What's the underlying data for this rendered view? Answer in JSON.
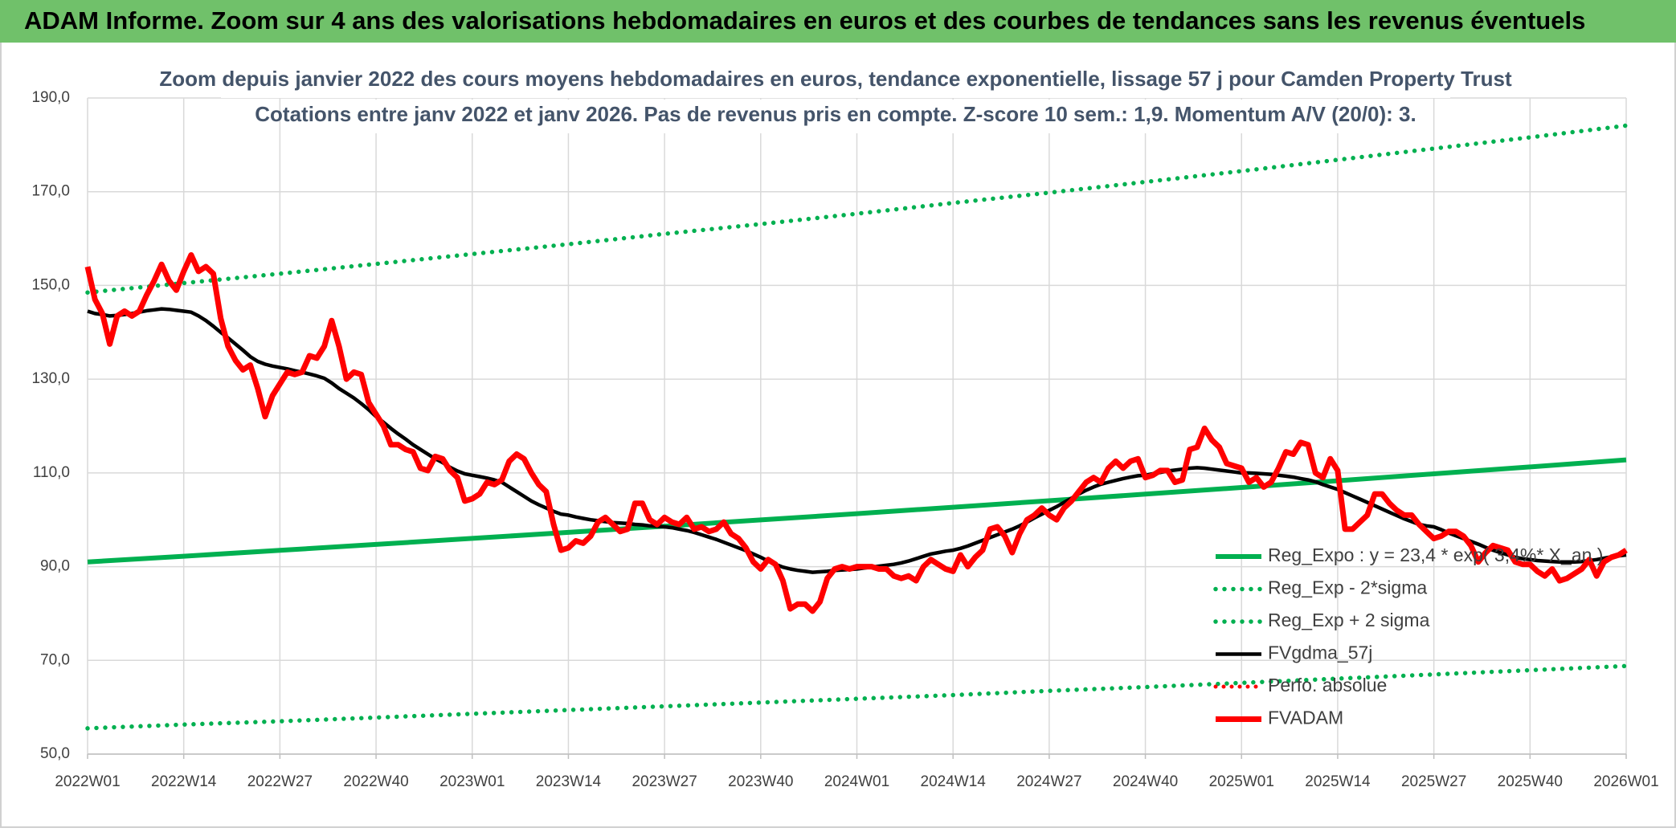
{
  "header": {
    "title": "ADAM Informe. Zoom sur 4 ans des valorisations hebdomadaires en euros et des courbes de tendances sans les revenus éventuels"
  },
  "chart_data": {
    "type": "line",
    "title": "Zoom depuis janvier 2022 des cours moyens hebdomadaires en euros, tendance exponentielle, lissage 57 j pour Camden Property Trust",
    "subtitle": "Cotations entre janv 2022 et janv 2026. Pas de revenus pris en compte. Z-score 10 sem.: 1,9. Momentum A/V (20/0): 3.",
    "categories": [
      "2022W01",
      null,
      null,
      null,
      null,
      null,
      null,
      null,
      null,
      null,
      null,
      null,
      null,
      "2022W14",
      null,
      null,
      null,
      null,
      null,
      null,
      null,
      null,
      null,
      null,
      null,
      null,
      "2022W27",
      null,
      null,
      null,
      null,
      null,
      null,
      null,
      null,
      null,
      null,
      null,
      null,
      "2022W40",
      null,
      null,
      null,
      null,
      null,
      null,
      null,
      null,
      null,
      null,
      null,
      null,
      "2023W01",
      null,
      null,
      null,
      null,
      null,
      null,
      null,
      null,
      null,
      null,
      null,
      null,
      "2023W14",
      null,
      null,
      null,
      null,
      null,
      null,
      null,
      null,
      null,
      null,
      null,
      null,
      "2023W27",
      null,
      null,
      null,
      null,
      null,
      null,
      null,
      null,
      null,
      null,
      null,
      null,
      "2023W40",
      null,
      null,
      null,
      null,
      null,
      null,
      null,
      null,
      null,
      null,
      null,
      null,
      "2024W01",
      null,
      null,
      null,
      null,
      null,
      null,
      null,
      null,
      null,
      null,
      null,
      null,
      "2024W14",
      null,
      null,
      null,
      null,
      null,
      null,
      null,
      null,
      null,
      null,
      null,
      null,
      "2024W27",
      null,
      null,
      null,
      null,
      null,
      null,
      null,
      null,
      null,
      null,
      null,
      null,
      "2024W40",
      null,
      null,
      null,
      null,
      null,
      null,
      null,
      null,
      null,
      null,
      null,
      null,
      "2025W01",
      null,
      null,
      null,
      null,
      null,
      null,
      null,
      null,
      null,
      null,
      null,
      null,
      "2025W14",
      null,
      null,
      null,
      null,
      null,
      null,
      null,
      null,
      null,
      null,
      null,
      null,
      "2025W27",
      null,
      null,
      null,
      null,
      null,
      null,
      null,
      null,
      null,
      null,
      null,
      null,
      "2025W40",
      null,
      null,
      null,
      null,
      null,
      null,
      null,
      null,
      null,
      null,
      null,
      null,
      "2026W01"
    ],
    "ylim": [
      50,
      190
    ],
    "yticks": [
      {
        "value": 50,
        "label": "50,0"
      },
      {
        "value": 70,
        "label": "70,0"
      },
      {
        "value": 90,
        "label": "90,0"
      },
      {
        "value": 110,
        "label": "110,0"
      },
      {
        "value": 130,
        "label": "130,0"
      },
      {
        "value": 150,
        "label": "150,0"
      },
      {
        "value": 170,
        "label": "170,0"
      },
      {
        "value": 190,
        "label": "190,0"
      }
    ],
    "grid": true,
    "legend": "lower right",
    "series": [
      {
        "name": "Reg_Expo : y = 23,4 * exp( 3,4%* X_an )",
        "color": "#00b050",
        "line_style": "solid",
        "x": [
          "2022W01",
          "2022W14",
          "2022W27",
          "2022W40",
          "2023W01",
          "2023W14",
          "2023W27",
          "2023W40",
          "2024W01",
          "2024W14",
          "2024W27",
          "2024W40",
          "2025W01",
          "2025W14",
          "2025W27",
          "2025W40",
          "2026W01"
        ],
        "values": [
          91,
          92.23,
          93.47,
          94.74,
          96.02,
          97.31,
          98.63,
          99.96,
          101.31,
          102.68,
          104.06,
          105.47,
          106.89,
          108.33,
          109.8,
          111.28,
          112.78
        ]
      },
      {
        "name": "Reg_Exp - 2*sigma",
        "color": "#00b050",
        "line_style": "dotted",
        "x": [
          "2022W01",
          "2022W14",
          "2022W27",
          "2022W40",
          "2023W01",
          "2023W14",
          "2023W27",
          "2023W40",
          "2024W01",
          "2024W14",
          "2024W27",
          "2024W40",
          "2025W01",
          "2025W14",
          "2025W27",
          "2025W40",
          "2026W01"
        ],
        "values": [
          55.5,
          56.3,
          57.0,
          57.8,
          58.6,
          59.4,
          60.2,
          61.0,
          61.8,
          62.6,
          63.5,
          64.3,
          65.2,
          66.1,
          67.0,
          67.9,
          68.8
        ]
      },
      {
        "name": "Reg_Exp + 2 sigma",
        "color": "#00b050",
        "line_style": "dotted",
        "x": [
          "2022W01",
          "2022W14",
          "2022W27",
          "2022W40",
          "2023W01",
          "2023W14",
          "2023W27",
          "2023W40",
          "2024W01",
          "2024W14",
          "2024W27",
          "2024W40",
          "2025W01",
          "2025W14",
          "2025W27",
          "2025W40",
          "2026W01"
        ],
        "values": [
          148.5,
          150.5,
          152.5,
          154.6,
          156.7,
          158.8,
          161.0,
          163.1,
          165.3,
          167.6,
          169.8,
          172.1,
          174.4,
          176.8,
          179.2,
          181.6,
          184.1
        ]
      },
      {
        "name": "FVgdma_57j",
        "color": "#000000",
        "line_style": "solid",
        "values": [
          144.5,
          144,
          143.8,
          143.5,
          143.6,
          143.8,
          144,
          144.3,
          144.6,
          144.8,
          145,
          144.9,
          144.7,
          144.5,
          144.3,
          143.5,
          142.5,
          141.3,
          140,
          138.8,
          137.5,
          136.2,
          134.8,
          133.8,
          133.2,
          132.8,
          132.5,
          132.2,
          131.8,
          131.5,
          131.1,
          130.7,
          130.2,
          129.2,
          128,
          127,
          126,
          124.8,
          123.5,
          122,
          120.8,
          119.5,
          118.3,
          117.2,
          116,
          115,
          114,
          113,
          112.2,
          111.2,
          110.4,
          109.8,
          109.5,
          109.2,
          108.9,
          108.5,
          108,
          107,
          106,
          105,
          104,
          103.2,
          102.5,
          101.8,
          101.2,
          101,
          100.6,
          100.3,
          100,
          99.8,
          99.6,
          99.4,
          99.3,
          99.2,
          99,
          98.9,
          98.7,
          98.6,
          98.5,
          98.3,
          98,
          97.7,
          97.3,
          96.8,
          96.3,
          95.8,
          95.2,
          94.6,
          94,
          93.4,
          92.7,
          92,
          91.2,
          90.5,
          89.9,
          89.5,
          89.2,
          89,
          88.8,
          88.9,
          89,
          89.2,
          89.3,
          89.4,
          89.5,
          89.7,
          89.9,
          90.1,
          90.3,
          90.5,
          90.8,
          91.2,
          91.7,
          92.2,
          92.7,
          93,
          93.3,
          93.5,
          93.9,
          94.4,
          95,
          95.6,
          96.2,
          96.8,
          97.4,
          98,
          98.7,
          99.5,
          100.4,
          101.2,
          102,
          102.8,
          103.7,
          104.6,
          105.5,
          106.3,
          107,
          107.6,
          108,
          108.4,
          108.8,
          109.1,
          109.4,
          109.5,
          109.8,
          110.1,
          110.4,
          110.6,
          110.8,
          111,
          111.1,
          111,
          110.8,
          110.6,
          110.4,
          110.2,
          110,
          110,
          109.9,
          109.8,
          109.7,
          109.5,
          109.3,
          109.1,
          108.8,
          108.5,
          108.1,
          107.5,
          107,
          106.5,
          105.8,
          105.1,
          104.4,
          103.7,
          103,
          102.3,
          101.6,
          100.9,
          100.2,
          99.6,
          99,
          98.7,
          98.5,
          97.9,
          97.2,
          96.6,
          96,
          95.4,
          94.8,
          94.1,
          93.5,
          93,
          92.5,
          92,
          91.7,
          91.5,
          91.3,
          91.2,
          91.1,
          91,
          91,
          91,
          91.1,
          91.3,
          91.5,
          91.8,
          92.1,
          92.3,
          92.5
        ]
      },
      {
        "name": "Perfo. absolue",
        "color": "#ff0000",
        "line_style": "dotted",
        "x": [
          "2022W01",
          "2026W01"
        ],
        "values": [
          null,
          null
        ]
      },
      {
        "name": "FVADAM",
        "color": "#ff0000",
        "line_style": "solid",
        "values": [
          154,
          147,
          144,
          137.5,
          143.5,
          144.5,
          143.5,
          144.5,
          148,
          151,
          154.5,
          151,
          149,
          153,
          156.5,
          153,
          154,
          152.5,
          143,
          137,
          134,
          132,
          133,
          128,
          122,
          126.5,
          129,
          131.5,
          131,
          131.5,
          135,
          134.5,
          137,
          142.5,
          137,
          130,
          131.5,
          131,
          125,
          122.5,
          120,
          116,
          116,
          115,
          114.5,
          111,
          110.5,
          113.5,
          113,
          110.5,
          109,
          104,
          104.5,
          105.5,
          108,
          107.5,
          108.5,
          112.5,
          114,
          113,
          110,
          107.5,
          106,
          99,
          93.5,
          94,
          95.5,
          95,
          96.5,
          99.5,
          100.5,
          99,
          97.5,
          98,
          103.5,
          103.5,
          100,
          99,
          100.5,
          99.5,
          99,
          100.5,
          98,
          98.5,
          97.5,
          98,
          99.5,
          97,
          96,
          94,
          91,
          89.5,
          91.5,
          90.5,
          87,
          81,
          82,
          82,
          80.5,
          82.5,
          87.5,
          89.5,
          90,
          89.5,
          90,
          90,
          90,
          89.5,
          89.5,
          88,
          87.5,
          88,
          87,
          90,
          91.5,
          90.5,
          89.5,
          89,
          92.5,
          90,
          92,
          93.5,
          98,
          98.5,
          96.5,
          93,
          97,
          100,
          101,
          102.5,
          101,
          100,
          102.5,
          104,
          106,
          108,
          109,
          108,
          111,
          112.5,
          111,
          112.5,
          113,
          109,
          109.5,
          110.5,
          110.5,
          108,
          108.5,
          115,
          115.5,
          119.5,
          117,
          115.5,
          112,
          111.5,
          111,
          108,
          109,
          107,
          108,
          111,
          114.5,
          114,
          116.5,
          116,
          110,
          109,
          113,
          110.5,
          98,
          98,
          99.5,
          101,
          105.5,
          105.5,
          103.5,
          102,
          101,
          101,
          99,
          97.5,
          96,
          96.5,
          97.5,
          97.5,
          96.5,
          94.5,
          91,
          93,
          94.5,
          94,
          93.5,
          91,
          90.5,
          90.5,
          89,
          88,
          89.5,
          87,
          87.5,
          88.5,
          89.5,
          91.5,
          88,
          91,
          92,
          92.5,
          93.5
        ]
      }
    ]
  }
}
